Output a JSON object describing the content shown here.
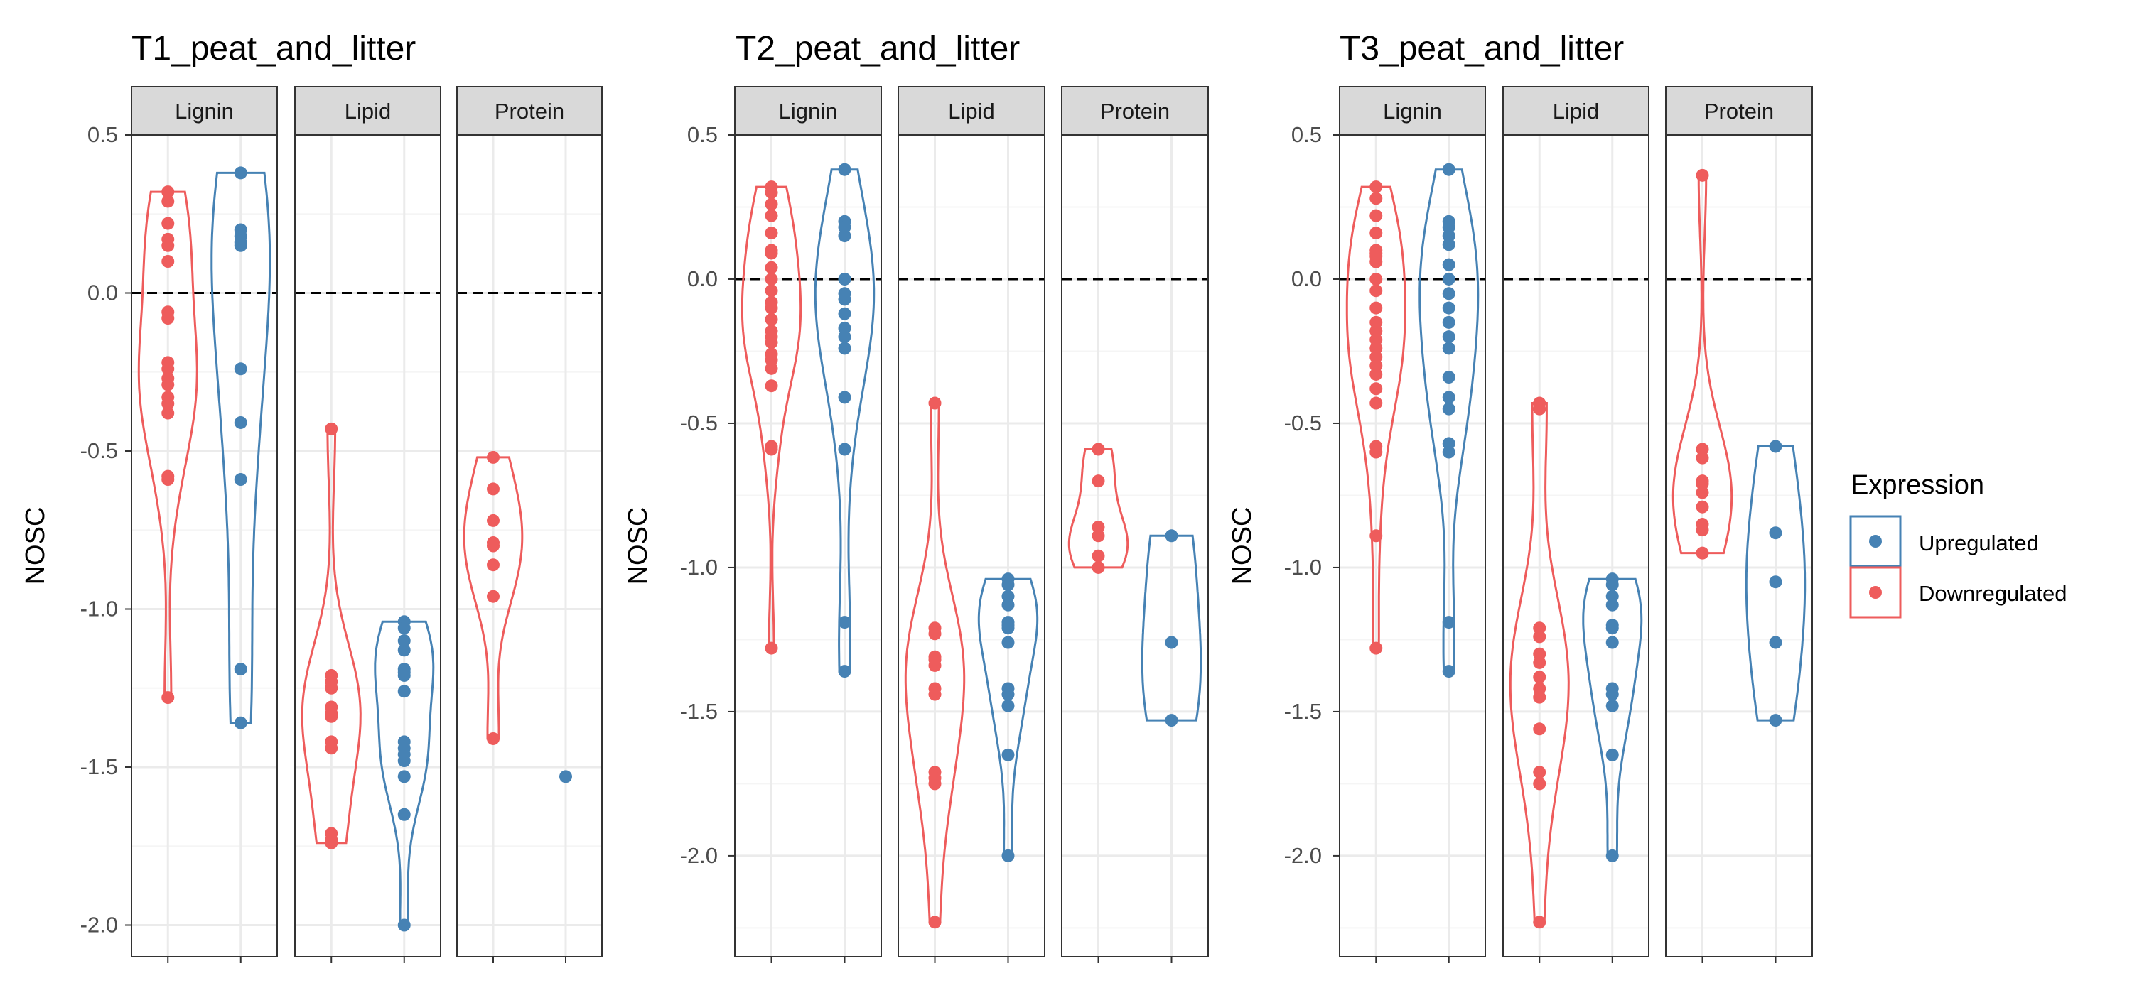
{
  "colors": {
    "upregulated": "#4682B4",
    "downregulated": "#EE5C5C",
    "strip_fill": "#D9D9D9",
    "grid_major": "#EBEBEB",
    "grid_minor": "#F5F5F5",
    "axis_text": "#4D4D4D",
    "panel_border": "#333333"
  },
  "legend": {
    "title": "Expression",
    "items": [
      {
        "label": "Upregulated",
        "series": "upregulated"
      },
      {
        "label": "Downregulated",
        "series": "downregulated"
      }
    ]
  },
  "chart_data": [
    {
      "type": "violin",
      "title": "T1_peat_and_litter",
      "ylabel": "NOSC",
      "xlabel": "",
      "ylim": [
        -2.1,
        0.5
      ],
      "yticks": [
        0.5,
        0.0,
        -0.5,
        -1.0,
        -1.5,
        -2.0
      ],
      "ytick_labels": [
        "0.5",
        "0.0",
        "-0.5",
        "-1.0",
        "-1.5",
        "-2.0"
      ],
      "reference_line": 0.0,
      "facets": [
        {
          "label": "Lignin",
          "downregulated": [
            0.32,
            0.29,
            0.22,
            0.17,
            0.15,
            0.1,
            -0.06,
            -0.08,
            -0.22,
            -0.24,
            -0.27,
            -0.29,
            -0.33,
            -0.35,
            -0.38,
            -0.58,
            -0.59,
            -1.28
          ],
          "upregulated": [
            0.38,
            0.2,
            0.18,
            0.16,
            0.15,
            -0.24,
            -0.41,
            -0.59,
            -1.19,
            -1.36
          ]
        },
        {
          "label": "Lipid",
          "downregulated": [
            -0.43,
            -1.21,
            -1.23,
            -1.25,
            -1.31,
            -1.33,
            -1.34,
            -1.42,
            -1.44,
            -1.71,
            -1.73,
            -1.74
          ],
          "upregulated": [
            -1.04,
            -1.06,
            -1.1,
            -1.13,
            -1.19,
            -1.2,
            -1.21,
            -1.26,
            -1.42,
            -1.44,
            -1.46,
            -1.48,
            -1.53,
            -1.65,
            -2.0
          ]
        },
        {
          "label": "Protein",
          "downregulated": [
            -0.52,
            -0.62,
            -0.72,
            -0.79,
            -0.8,
            -0.86,
            -0.96,
            -1.41
          ],
          "upregulated": [
            -1.53
          ]
        }
      ]
    },
    {
      "type": "violin",
      "title": "T2_peat_and_litter",
      "ylabel": "NOSC",
      "xlabel": "",
      "ylim": [
        -2.35,
        0.5
      ],
      "yticks": [
        0.5,
        0.0,
        -0.5,
        -1.0,
        -1.5,
        -2.0
      ],
      "ytick_labels": [
        "0.5",
        "0.0",
        "-0.5",
        "-1.0",
        "-1.5",
        "-2.0"
      ],
      "reference_line": 0.0,
      "facets": [
        {
          "label": "Lignin",
          "downregulated": [
            0.32,
            0.3,
            0.26,
            0.22,
            0.16,
            0.1,
            0.09,
            0.04,
            0.0,
            -0.04,
            -0.08,
            -0.1,
            -0.14,
            -0.18,
            -0.2,
            -0.22,
            -0.26,
            -0.28,
            -0.31,
            -0.37,
            -0.58,
            -0.59,
            -1.28
          ],
          "upregulated": [
            0.38,
            0.2,
            0.18,
            0.15,
            0.0,
            0.0,
            -0.05,
            -0.07,
            -0.12,
            -0.17,
            -0.2,
            -0.24,
            -0.41,
            -0.59,
            -1.19,
            -1.36
          ]
        },
        {
          "label": "Lipid",
          "downregulated": [
            -0.43,
            -1.21,
            -1.23,
            -1.31,
            -1.32,
            -1.34,
            -1.42,
            -1.44,
            -1.71,
            -1.73,
            -1.75,
            -2.23
          ],
          "upregulated": [
            -1.04,
            -1.06,
            -1.1,
            -1.13,
            -1.19,
            -1.2,
            -1.21,
            -1.26,
            -1.42,
            -1.44,
            -1.48,
            -1.65,
            -2.0
          ]
        },
        {
          "label": "Protein",
          "downregulated": [
            -0.59,
            -0.7,
            -0.86,
            -0.89,
            -0.96,
            -1.0
          ],
          "upregulated": [
            -0.89,
            -1.26,
            -1.53
          ]
        }
      ]
    },
    {
      "type": "violin",
      "title": "T3_peat_and_litter",
      "ylabel": "NOSC",
      "xlabel": "",
      "ylim": [
        -2.35,
        0.5
      ],
      "yticks": [
        0.5,
        0.0,
        -0.5,
        -1.0,
        -1.5,
        -2.0
      ],
      "ytick_labels": [
        "0.5",
        "0.0",
        "-0.5",
        "-1.0",
        "-1.5",
        "-2.0"
      ],
      "reference_line": 0.0,
      "facets": [
        {
          "label": "Lignin",
          "downregulated": [
            0.32,
            0.28,
            0.22,
            0.16,
            0.1,
            0.09,
            0.08,
            0.06,
            0.0,
            -0.04,
            -0.1,
            -0.15,
            -0.18,
            -0.21,
            -0.24,
            -0.27,
            -0.3,
            -0.33,
            -0.38,
            -0.43,
            -0.58,
            -0.6,
            -0.89,
            -1.28
          ],
          "upregulated": [
            0.38,
            0.2,
            0.18,
            0.15,
            0.12,
            0.05,
            0.0,
            -0.05,
            -0.1,
            -0.15,
            -0.2,
            -0.24,
            -0.34,
            -0.41,
            -0.45,
            -0.57,
            -0.6,
            -1.19,
            -1.36
          ]
        },
        {
          "label": "Lipid",
          "downregulated": [
            -0.43,
            -0.45,
            -1.21,
            -1.24,
            -1.3,
            -1.33,
            -1.38,
            -1.42,
            -1.45,
            -1.56,
            -1.71,
            -1.75,
            -2.23
          ],
          "upregulated": [
            -1.04,
            -1.06,
            -1.1,
            -1.13,
            -1.2,
            -1.21,
            -1.26,
            -1.42,
            -1.44,
            -1.48,
            -1.65,
            -2.0
          ]
        },
        {
          "label": "Protein",
          "downregulated": [
            0.36,
            -0.59,
            -0.62,
            -0.7,
            -0.71,
            -0.74,
            -0.79,
            -0.85,
            -0.87,
            -0.95
          ],
          "upregulated": [
            -0.58,
            -0.88,
            -1.05,
            -1.26,
            -1.53
          ]
        }
      ]
    }
  ]
}
